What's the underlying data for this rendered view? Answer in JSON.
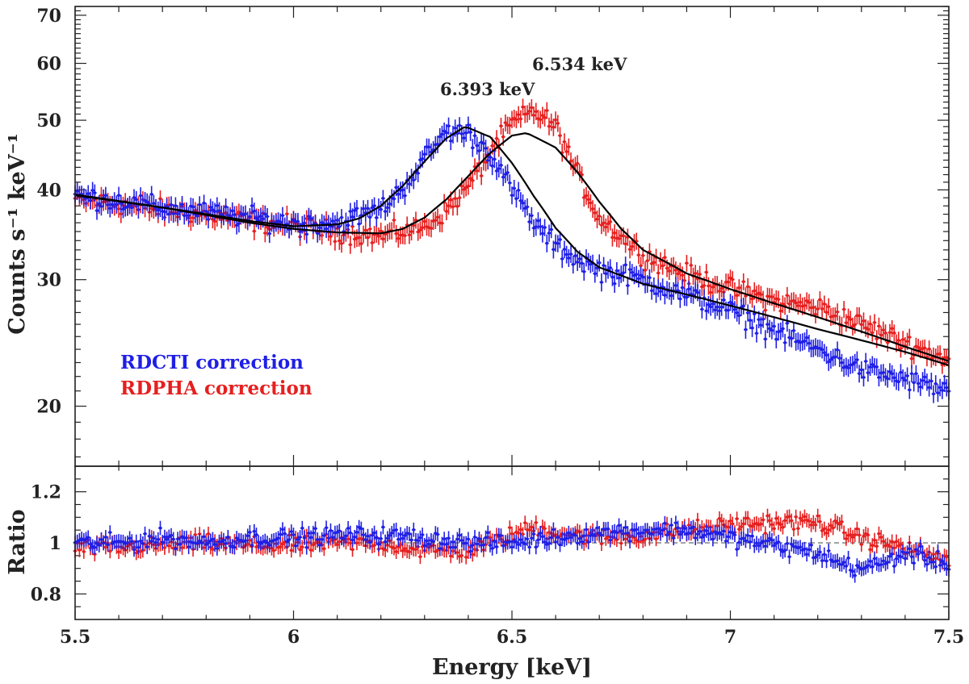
{
  "chart_data": [
    {
      "type": "scatter",
      "panel": "spectrum",
      "ylabel": "Counts s⁻¹ keV⁻¹",
      "y_scale": "log",
      "xlim": [
        5.5,
        7.5
      ],
      "ylim": [
        16.5,
        72
      ],
      "y_ticks": [
        20,
        30,
        40,
        50,
        60,
        70
      ],
      "y_tick_labels": [
        "20",
        "30",
        "40",
        "50",
        "60",
        "70"
      ],
      "x_tick_labels": [
        "5.5",
        "6",
        "6.5",
        "7",
        "7.5"
      ],
      "legend_placement": "lower-left",
      "annotations": [
        {
          "text": "6.393 keV",
          "x": 6.393,
          "y": 51.5
        },
        {
          "text": "6.534 keV",
          "x": 6.534,
          "y": 57.5
        }
      ],
      "series": [
        {
          "name": "RDCTI correction",
          "color": "#1f1fe6",
          "x": [
            5.5,
            5.6,
            5.7,
            5.8,
            5.9,
            6.0,
            6.1,
            6.2,
            6.25,
            6.3,
            6.35,
            6.4,
            6.45,
            6.5,
            6.55,
            6.6,
            6.65,
            6.7,
            6.8,
            6.9,
            7.0,
            7.1,
            7.2,
            7.3,
            7.4,
            7.5
          ],
          "y": [
            39.3,
            38.6,
            37.8,
            37.2,
            36.6,
            35.9,
            36.0,
            37.6,
            40.2,
            44.2,
            48.3,
            48.0,
            45.0,
            40.0,
            36.0,
            33.5,
            32.0,
            31.0,
            30.0,
            28.5,
            27.2,
            25.5,
            24.0,
            22.5,
            21.8,
            21.0
          ]
        },
        {
          "name": "RDPHA correction",
          "color": "#e61f1f",
          "x": [
            5.5,
            5.6,
            5.7,
            5.8,
            5.9,
            6.0,
            6.1,
            6.2,
            6.3,
            6.35,
            6.4,
            6.45,
            6.5,
            6.55,
            6.6,
            6.65,
            6.7,
            6.8,
            6.9,
            7.0,
            7.1,
            7.2,
            7.3,
            7.4,
            7.5
          ],
          "y": [
            38.8,
            38.2,
            37.5,
            37.0,
            36.2,
            35.7,
            35.0,
            34.5,
            35.5,
            37.5,
            40.5,
            45.0,
            49.5,
            51.5,
            49.0,
            42.0,
            36.5,
            32.5,
            30.5,
            29.2,
            28.0,
            27.5,
            26.0,
            24.5,
            23.2
          ]
        },
        {
          "name": "",
          "color": "#000000",
          "style": "line",
          "x": [
            5.5,
            5.7,
            5.9,
            6.0,
            6.1,
            6.15,
            6.2,
            6.25,
            6.3,
            6.35,
            6.393,
            6.45,
            6.5,
            6.55,
            6.6,
            6.65,
            6.7,
            6.8,
            6.9,
            7.0,
            7.1,
            7.2,
            7.3,
            7.4,
            7.5
          ],
          "y": [
            39.3,
            37.8,
            36.2,
            35.6,
            35.8,
            36.5,
            38.0,
            40.5,
            43.8,
            47.2,
            49.0,
            47.4,
            43.6,
            39.2,
            35.4,
            32.8,
            31.2,
            29.6,
            28.6,
            27.6,
            26.6,
            25.6,
            24.7,
            23.8,
            22.8
          ]
        },
        {
          "name": "",
          "color": "#000000",
          "style": "line",
          "x": [
            5.5,
            5.7,
            5.9,
            6.0,
            6.1,
            6.2,
            6.25,
            6.3,
            6.35,
            6.4,
            6.45,
            6.5,
            6.534,
            6.6,
            6.65,
            6.7,
            6.75,
            6.8,
            6.9,
            7.0,
            7.1,
            7.2,
            7.3,
            7.4,
            7.5
          ],
          "y": [
            39.4,
            37.8,
            36.0,
            35.3,
            34.9,
            34.8,
            35.3,
            36.6,
            38.8,
            41.8,
            45.0,
            47.6,
            48.0,
            45.8,
            42.3,
            38.5,
            35.3,
            33.0,
            30.6,
            29.1,
            27.8,
            26.6,
            25.4,
            24.2,
            23.1
          ]
        }
      ]
    },
    {
      "type": "scatter",
      "panel": "ratio",
      "xlabel": "Energy [keV]",
      "ylabel": "Ratio",
      "xlim": [
        5.5,
        7.5
      ],
      "ylim": [
        0.7,
        1.3
      ],
      "y_ticks": [
        0.8,
        1.0,
        1.2
      ],
      "y_tick_labels": [
        "0.8",
        "1",
        "1.2"
      ],
      "x_ticks": [
        5.5,
        6.0,
        6.5,
        7.0,
        7.5
      ],
      "x_tick_labels": [
        "5.5",
        "6",
        "6.5",
        "7",
        "7.5"
      ],
      "reference_line": 1.0,
      "series": [
        {
          "name": "RDCTI correction",
          "color": "#1f1fe6",
          "x": [
            5.5,
            5.6,
            5.7,
            5.8,
            5.9,
            6.0,
            6.1,
            6.2,
            6.3,
            6.4,
            6.5,
            6.6,
            6.7,
            6.8,
            6.9,
            7.0,
            7.1,
            7.2,
            7.25,
            7.3,
            7.35,
            7.4,
            7.5
          ],
          "y": [
            1.0,
            1.0,
            1.02,
            1.0,
            1.02,
            1.02,
            1.03,
            1.03,
            1.02,
            1.0,
            1.0,
            1.02,
            1.04,
            1.05,
            1.05,
            1.02,
            0.99,
            0.96,
            0.92,
            0.9,
            0.92,
            0.96,
            0.92
          ]
        },
        {
          "name": "RDPHA correction",
          "color": "#e61f1f",
          "x": [
            5.5,
            5.6,
            5.7,
            5.8,
            5.9,
            6.0,
            6.1,
            6.2,
            6.3,
            6.4,
            6.5,
            6.55,
            6.6,
            6.7,
            6.8,
            6.9,
            7.0,
            7.1,
            7.2,
            7.3,
            7.4,
            7.5
          ],
          "y": [
            0.98,
            0.98,
            0.99,
            1.0,
            0.99,
            0.99,
            1.0,
            1.0,
            0.97,
            0.97,
            1.03,
            1.06,
            1.04,
            1.02,
            1.03,
            1.05,
            1.07,
            1.08,
            1.08,
            1.02,
            0.98,
            0.93
          ]
        }
      ]
    }
  ]
}
